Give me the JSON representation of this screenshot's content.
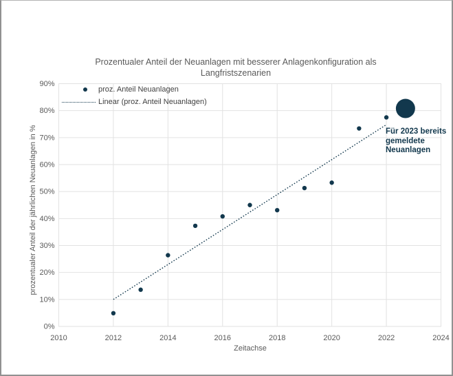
{
  "chart": {
    "title": "Prozentualer Anteil der Neuanlagen mit besserer Anlagenkonfiguration als Langfristszenarien",
    "legend": [
      {
        "label": "proz. Anteil Neuanlagen",
        "marker": "dot"
      },
      {
        "label": "Linear (proz. Anteil Neuanlagen)",
        "marker": "dotted-line"
      }
    ],
    "y_axis_title": "prozentualer Anteil der jährlichen Neuanlagen in %",
    "x_axis_title": "Zeitachse",
    "annotation_multiline": "Für 2023 bereits\ngemeldete\nNeuanlagen"
  },
  "chart_data": {
    "type": "scatter",
    "title": "Prozentualer Anteil der Neuanlagen mit besserer Anlagenkonfiguration als Langfristszenarien",
    "xlabel": "Zeitachse",
    "ylabel": "prozentualer Anteil der jährlichen Neuanlagen in %",
    "xlim": [
      2010,
      2024
    ],
    "ylim": [
      0,
      90
    ],
    "x_ticks": [
      2010,
      2012,
      2014,
      2016,
      2018,
      2020,
      2022,
      2024
    ],
    "y_ticks": [
      0,
      10,
      20,
      30,
      40,
      50,
      60,
      70,
      80,
      90
    ],
    "y_tick_suffix": "%",
    "grid": true,
    "legend_position": "top-left-inside",
    "colors": {
      "series": "#12384d",
      "grid": "#e2e2e2",
      "axis_text": "#595959",
      "title_text": "#595959"
    },
    "series": [
      {
        "name": "proz. Anteil Neuanlagen",
        "type": "scatter",
        "points": [
          [
            2012,
            4.9
          ],
          [
            2013,
            13.6
          ],
          [
            2014,
            26.4
          ],
          [
            2015,
            37.3
          ],
          [
            2016,
            40.8
          ],
          [
            2017,
            45.0
          ],
          [
            2018,
            43.1
          ],
          [
            2019,
            51.3
          ],
          [
            2020,
            53.3
          ],
          [
            2021,
            73.4
          ],
          [
            2022,
            77.5
          ]
        ]
      },
      {
        "name": "Linear (proz. Anteil Neuanlagen)",
        "type": "trendline",
        "style": "dotted",
        "from": [
          2012,
          10.0
        ],
        "to": [
          2022,
          74.8
        ]
      },
      {
        "name": "Für 2023 bereits gemeldete Neuanlagen",
        "type": "highlight",
        "point": [
          2022.7,
          80.8
        ],
        "radius_px": 14
      }
    ]
  }
}
